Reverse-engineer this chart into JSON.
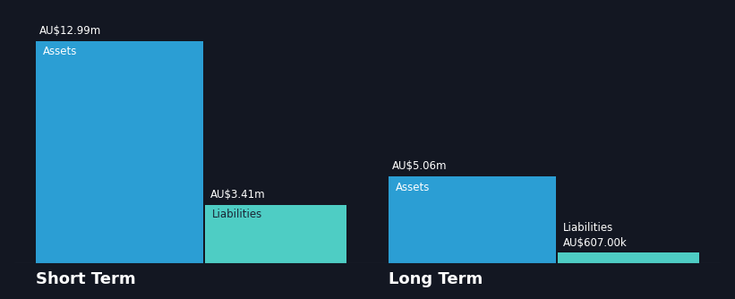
{
  "background_color": "#131722",
  "groups": [
    {
      "label": "Short Term",
      "asset": {
        "value": 12.99,
        "color": "#2B9ED4",
        "value_label": "AU$12.99m",
        "bar_label": "Assets",
        "label_color": "#ffffff"
      },
      "liability": {
        "value": 3.41,
        "color": "#4ECDC4",
        "value_label": "AU$3.41m",
        "bar_label": "Liabilities",
        "label_color": "#1a2535",
        "label_inside": true
      }
    },
    {
      "label": "Long Term",
      "asset": {
        "value": 5.06,
        "color": "#2B9ED4",
        "value_label": "AU$5.06m",
        "bar_label": "Assets",
        "label_color": "#ffffff"
      },
      "liability": {
        "value": 0.607,
        "color": "#4ECDC4",
        "value_label": "AU$607.00k",
        "bar_label": "Liabilities",
        "label_color": "#ffffff",
        "label_inside": false
      }
    }
  ],
  "ylim_max": 14.5,
  "text_color": "#ffffff",
  "value_label_fontsize": 8.5,
  "bar_label_fontsize": 8.5,
  "group_label_fontsize": 13
}
